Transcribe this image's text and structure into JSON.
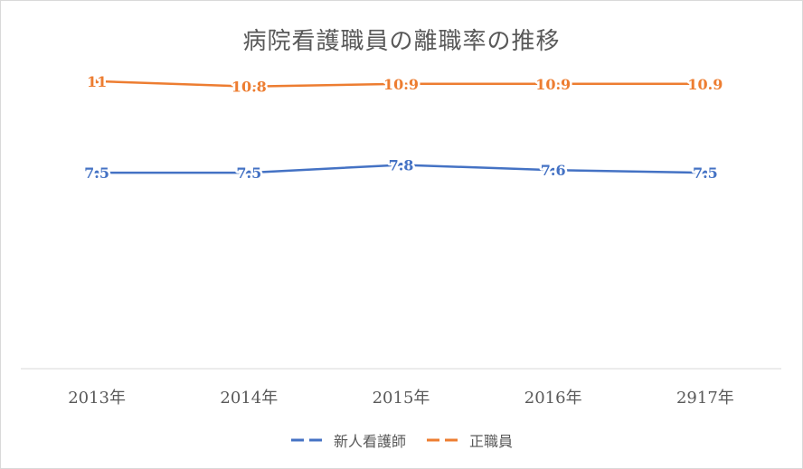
{
  "chart_data": {
    "type": "line",
    "title": "病院看護職員の離職率の推移",
    "categories": [
      "2013年",
      "2014年",
      "2015年",
      "2016年",
      "2917年"
    ],
    "series": [
      {
        "name": "新人看護師",
        "values": [
          7.5,
          7.5,
          7.8,
          7.6,
          7.5
        ],
        "labels": [
          "7.5",
          "7.5",
          "7.8",
          "7.6",
          "7.5"
        ],
        "color": "#4472c4",
        "dash": "dashed-legend"
      },
      {
        "name": "正職員",
        "values": [
          11,
          10.8,
          10.9,
          10.9,
          10.9
        ],
        "labels": [
          "11",
          "10.8",
          "10.9",
          "10.9",
          "10.9"
        ],
        "color": "#ed7d31",
        "dash": "dashed-legend"
      }
    ],
    "ylim": [
      0,
      12
    ],
    "grid": false,
    "legend_position": "bottom",
    "data_labels": true
  }
}
